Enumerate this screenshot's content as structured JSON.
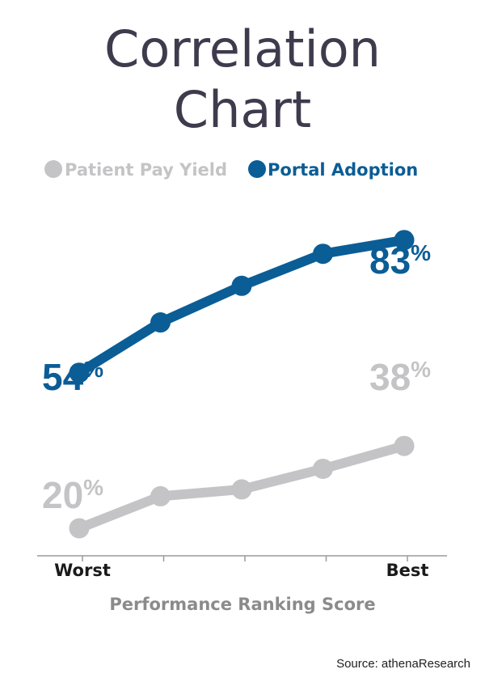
{
  "chart_data": {
    "type": "line",
    "title_lines": [
      "Correlation",
      "Chart"
    ],
    "xlabel": "Performance Ranking Score",
    "categories": [
      "Worst",
      "",
      "",
      "",
      "Best"
    ],
    "series": [
      {
        "name": "Patient Pay Yield",
        "color": "#c4c4c6",
        "values": [
          20,
          27,
          28.5,
          33,
          38
        ],
        "labels": [
          {
            "index": 0,
            "text": "20",
            "unit": "%"
          },
          {
            "index": 4,
            "text": "38",
            "unit": "%"
          }
        ]
      },
      {
        "name": "Portal Adoption",
        "color": "#0b5d95",
        "values": [
          54,
          65,
          73,
          80,
          83
        ],
        "labels": [
          {
            "index": 0,
            "text": "54",
            "unit": "%"
          },
          {
            "index": 4,
            "text": "83",
            "unit": "%"
          }
        ]
      }
    ],
    "legend_position": "top",
    "grid": false
  },
  "source": "Source: athenaResearch",
  "colors": {
    "title": "#3f3b4d",
    "axis": "#9a9a9c",
    "axis_label": "#8b8b8d",
    "tick_label": "#1a1a1a"
  }
}
